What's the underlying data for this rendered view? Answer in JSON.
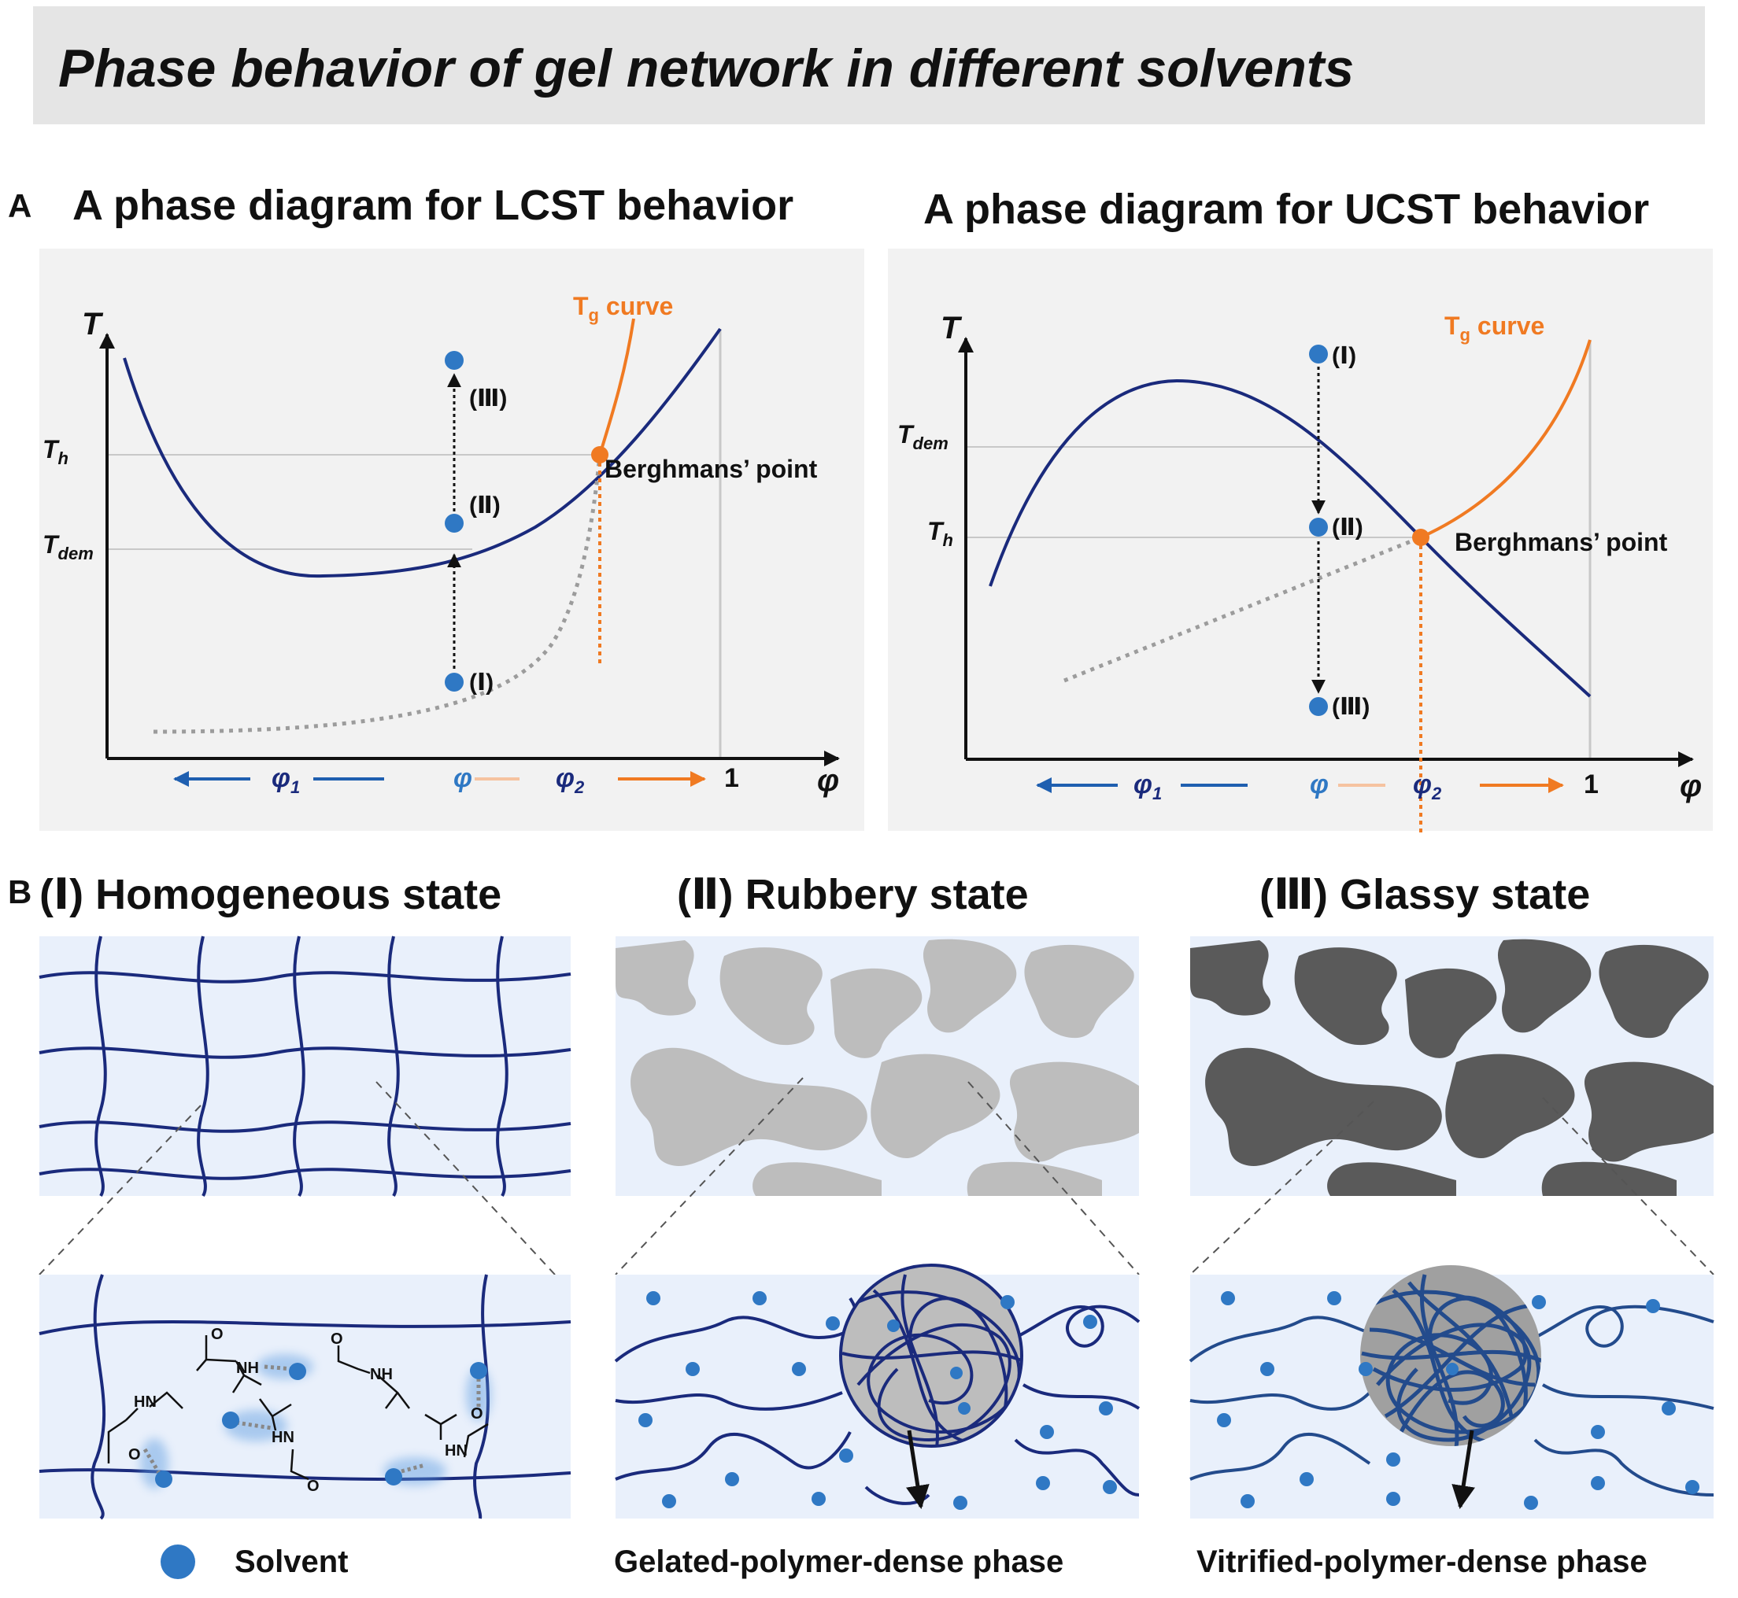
{
  "header": {
    "title": "Phase behavior of gel network in different solvents"
  },
  "panel_a": {
    "label": "A",
    "lcst": {
      "title": "A phase diagram for LCST behavior",
      "y_axis": "T",
      "x_axis": "φ",
      "tg_curve_label": "T",
      "tg_curve_sub": "g",
      "tg_curve_rest": " curve",
      "berghmans_label": "Berghmans’ point",
      "th_label": "T",
      "th_sub": "h",
      "tdem_label": "T",
      "tdem_sub": "dem",
      "phi1": "φ",
      "phi1_sub": "1",
      "phi": "φ",
      "phi2": "φ",
      "phi2_sub": "2",
      "one": "1",
      "points": [
        "(Ⅰ)",
        "(Ⅱ)",
        "(Ⅲ)"
      ]
    },
    "ucst": {
      "title": "A phase diagram for UCST behavior",
      "y_axis": "T",
      "x_axis": "φ",
      "tg_curve_label": "T",
      "tg_curve_sub": "g",
      "tg_curve_rest": " curve",
      "berghmans_label": "Berghmans’ point",
      "tdem_label": "T",
      "tdem_sub": "dem",
      "th_label": "T",
      "th_sub": "h",
      "phi1": "φ",
      "phi1_sub": "1",
      "phi": "φ",
      "phi2": "φ",
      "phi2_sub": "2",
      "one": "1",
      "points": [
        "(Ⅰ)",
        "(Ⅱ)",
        "(Ⅲ)"
      ]
    }
  },
  "panel_b": {
    "label": "B",
    "states": [
      {
        "numeral": "(Ⅰ)",
        "title": "Homogeneous state"
      },
      {
        "numeral": "(Ⅱ)",
        "title": "Rubbery state"
      },
      {
        "numeral": "(Ⅲ)",
        "title": "Glassy state"
      }
    ],
    "molecule_labels": [
      "NH",
      "NH",
      "HN",
      "HN",
      "HN",
      "O",
      "O",
      "O",
      "O",
      "O"
    ],
    "legend_solvent": "Solvent",
    "gelated_label": "Gelated-polymer-dense phase",
    "vitrified_label": "Vitrified-polymer-dense phase"
  },
  "colors": {
    "curve_blue": "#1a2a7c",
    "tg_orange": "#f07a22",
    "dot_blue": "#2f78c4",
    "panel_bg": "#f2f2f2",
    "state_bg": "#e9f0fb",
    "rubbery_gray": "#bdbdbd",
    "glassy_gray": "#5a5a5a"
  }
}
